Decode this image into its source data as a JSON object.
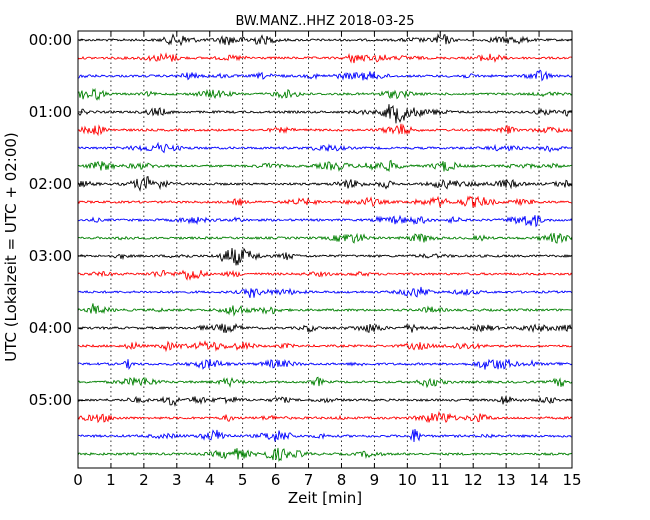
{
  "chart_data": {
    "type": "line",
    "title": "BW.MANZ..HHZ 2018-03-25",
    "xlabel": "Zeit  [min]",
    "ylabel": "UTC (Lokalzeit = UTC + 02:00)",
    "xlim": [
      0,
      15
    ],
    "x_ticks": [
      "0",
      "1",
      "2",
      "3",
      "4",
      "5",
      "6",
      "7",
      "8",
      "9",
      "10",
      "11",
      "12",
      "13",
      "14",
      "15"
    ],
    "y_ticks": [
      "00:00",
      "01:00",
      "02:00",
      "03:00",
      "04:00",
      "05:00"
    ],
    "trace_minutes_per_row": 15,
    "trace_count": 24,
    "trace_colors": [
      "#000000",
      "#ff0000",
      "#0000ff",
      "#008000"
    ],
    "grid": "vertical dotted at each minute",
    "legend": "none"
  }
}
